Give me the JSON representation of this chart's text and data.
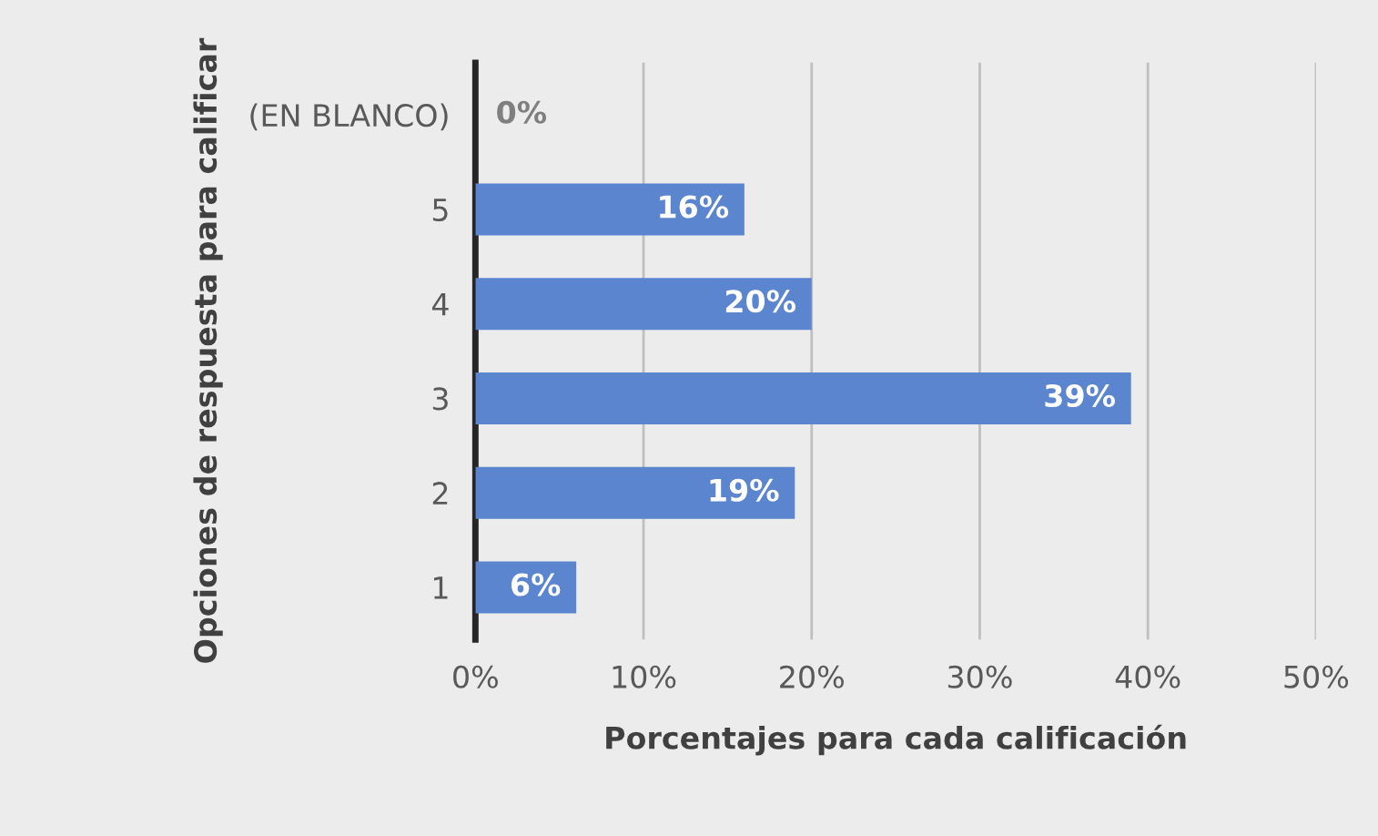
{
  "chart_data": {
    "type": "bar",
    "orientation": "horizontal",
    "xlabel": "Porcentajes para cada calificación",
    "ylabel": "Opciones de respuesta para calificar",
    "categories": [
      "(EN BLANCO)",
      "5",
      "4",
      "3",
      "2",
      "1"
    ],
    "values": [
      0,
      16,
      20,
      39,
      19,
      6
    ],
    "value_labels": [
      "0%",
      "16%",
      "20%",
      "39%",
      "19%",
      "6%"
    ],
    "color": "#5b85cf",
    "xlim": [
      0,
      50
    ],
    "xticks": [
      {
        "value": 0,
        "label": "0%"
      },
      {
        "value": 10,
        "label": "10%"
      },
      {
        "value": 20,
        "label": "20%"
      },
      {
        "value": 30,
        "label": "30%"
      },
      {
        "value": 40,
        "label": "40%"
      },
      {
        "value": 50,
        "label": "50%"
      }
    ],
    "grid": "x"
  }
}
